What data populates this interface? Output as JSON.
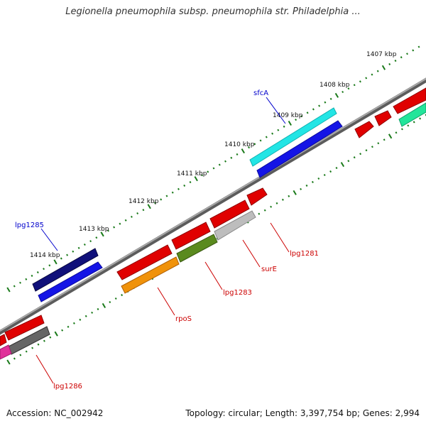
{
  "header": {
    "title": "Legionella pneumophila subsp. pneumophila str. Philadelphia ..."
  },
  "footer": {
    "accession": "Accession: NC_002942",
    "topology": "Topology: circular; Length: 3,397,754 bp; Genes: 2,994"
  },
  "ruler": {
    "ticks": [
      "1407 kbp",
      "1408 kbp",
      "1409 kbp",
      "1410 kbp",
      "1411 kbp",
      "1412 kbp",
      "1413 kbp",
      "1414 kbp"
    ],
    "tick_color": "#1a7a1a"
  },
  "genes": {
    "forward_labels": [
      {
        "name": "sfcA",
        "color": "#0000cc"
      },
      {
        "name": "lpg1285",
        "color": "#0000cc"
      }
    ],
    "reverse_labels": [
      {
        "name": "lpg1281",
        "color": "#cc0000"
      },
      {
        "name": "surE",
        "color": "#cc0000"
      },
      {
        "name": "lpg1283",
        "color": "#cc0000"
      },
      {
        "name": "rpoS",
        "color": "#cc0000"
      },
      {
        "name": "lpg1286",
        "color": "#cc0000"
      }
    ]
  },
  "colors": {
    "backbone": "#8a8a8a",
    "cyan": "#22e5e5",
    "blue": "#1414e6",
    "navy": "#10107a",
    "red": "#e00000",
    "green": "#5a8a1e",
    "silver": "#bdbdbd",
    "orange": "#f0920a",
    "gray": "#666666",
    "magenta": "#e0309a",
    "mint": "#22e59a"
  }
}
